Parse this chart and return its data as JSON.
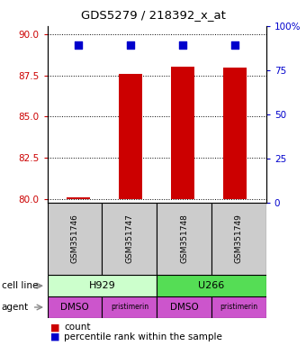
{
  "title": "GDS5279 / 218392_x_at",
  "samples": [
    "GSM351746",
    "GSM351747",
    "GSM351748",
    "GSM351749"
  ],
  "bar_values": [
    80.1,
    87.6,
    88.05,
    88.0
  ],
  "percentile_values": [
    89.0,
    89.0,
    89.3,
    89.0
  ],
  "bar_bottom": 80.0,
  "ylim_left": [
    79.8,
    90.5
  ],
  "ylim_right": [
    0,
    100
  ],
  "left_ticks": [
    80,
    82.5,
    85,
    87.5,
    90
  ],
  "right_ticks": [
    0,
    25,
    50,
    75,
    100
  ],
  "right_tick_labels": [
    "0",
    "25",
    "50",
    "75",
    "100%"
  ],
  "bar_color": "#cc0000",
  "dot_color": "#0000cc",
  "cell_lines": [
    [
      "H929",
      2
    ],
    [
      "U266",
      2
    ]
  ],
  "cell_line_colors": [
    "#ccffcc",
    "#55dd55"
  ],
  "agents": [
    "DMSO",
    "pristimerin",
    "DMSO",
    "pristimerin"
  ],
  "agent_color": "#cc55cc",
  "grid_linestyle": "dotted",
  "bar_width": 0.45,
  "dot_size": 28,
  "sample_box_color": "#cccccc",
  "left_tick_color": "#cc0000",
  "right_tick_color": "#0000cc",
  "bg_color": "#ffffff"
}
